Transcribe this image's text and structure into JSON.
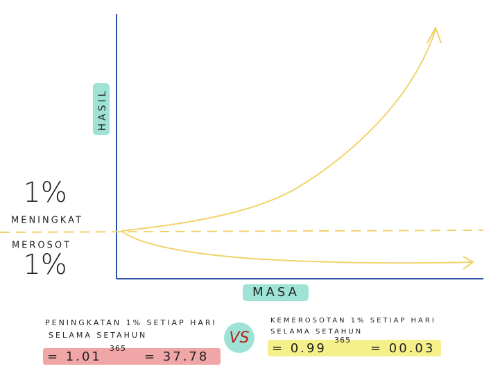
{
  "axes": {
    "y_label": "HASIL",
    "x_label": "MASA"
  },
  "left_labels": {
    "top_percent": "1%",
    "top_text": "MENINGKAT",
    "bottom_text": "MEROSOT",
    "bottom_percent": "1%"
  },
  "vs": "VS",
  "formulas": [
    {
      "caption": [
        "PENINGKATAN 1% SETIAP HARI",
        "SELAMA SETAHUN"
      ],
      "base": "= 1.01",
      "exponent": "365",
      "result": "= 37.78"
    },
    {
      "caption": [
        "KEMEROSOTAN 1% SETIAP HARI",
        "SELAMA SETAHUN"
      ],
      "base": "= 0.99",
      "exponent": "365",
      "result": "= 00.03"
    }
  ]
}
